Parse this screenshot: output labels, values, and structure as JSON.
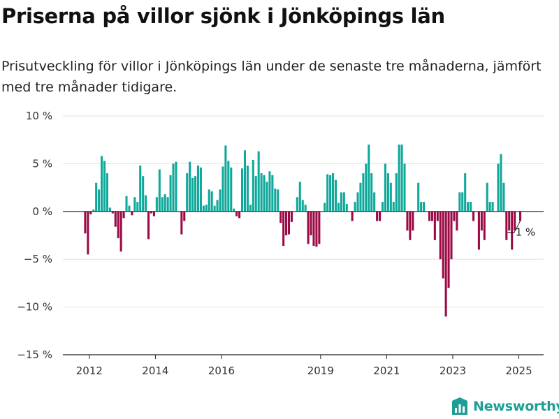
{
  "title": "Priserna på villor sjönk i Jönköpings län",
  "subtitle": "Prisutveckling för villor i Jönköpings län under de senaste tre månaderna, jämfört med tre månader tidigare.",
  "brand": "Newsworthy",
  "chart_data": {
    "type": "bar",
    "y_unit": "percent",
    "ylim": [
      -15,
      10
    ],
    "y_ticks": [
      10,
      5,
      0,
      -5,
      -10,
      -15
    ],
    "y_tick_labels": [
      "10 %",
      "5 %",
      "0 %",
      "−5 %",
      "−10 %",
      "−15 %"
    ],
    "x_tick_years": [
      2012,
      2014,
      2016,
      2019,
      2021,
      2023,
      2025
    ],
    "x_tick_labels": [
      "2012",
      "2014",
      "2016",
      "2019",
      "2021",
      "2023",
      "2025"
    ],
    "grid": true,
    "positive_color": "#0fa89a",
    "negative_color": "#9b0a45",
    "annotation": "−1 %",
    "period_start": "2011-11",
    "period_end": "2025-02",
    "values": [
      -2.3,
      -4.5,
      -0.3,
      0.2,
      3.0,
      2.3,
      5.8,
      5.3,
      4.0,
      0.4,
      -0.2,
      -1.6,
      -2.8,
      -4.2,
      -0.7,
      1.6,
      0.6,
      -0.4,
      1.5,
      1.0,
      4.8,
      3.7,
      1.7,
      -2.9,
      -0.2,
      -0.5,
      1.5,
      4.4,
      1.5,
      1.8,
      1.5,
      3.8,
      5.0,
      5.2,
      0.0,
      -2.4,
      -1.0,
      4.0,
      5.2,
      3.5,
      3.7,
      4.8,
      4.6,
      0.6,
      0.7,
      2.3,
      2.1,
      0.6,
      1.2,
      2.3,
      4.7,
      6.9,
      5.3,
      4.6,
      0.3,
      -0.5,
      -0.7,
      4.5,
      6.4,
      4.8,
      0.7,
      5.4,
      3.7,
      6.3,
      4.0,
      3.8,
      3.1,
      4.2,
      3.8,
      2.4,
      2.3,
      -1.2,
      -3.6,
      -2.5,
      -2.4,
      -1.1,
      0.0,
      1.5,
      3.1,
      1.2,
      0.7,
      -3.4,
      -2.5,
      -3.6,
      -3.7,
      -3.4,
      0.0,
      0.9,
      3.9,
      3.8,
      4.0,
      3.3,
      0.9,
      2.0,
      2.0,
      0.8,
      0.0,
      -1.0,
      1.0,
      2.0,
      3.0,
      4.0,
      5.0,
      7.0,
      4.0,
      2.0,
      -1.0,
      -1.0,
      1.0,
      5.0,
      4.0,
      3.0,
      1.0,
      4.0,
      7.0,
      7.0,
      5.0,
      -2.0,
      -3.0,
      -2.0,
      0.0,
      3.0,
      1.0,
      1.0,
      0.0,
      -1.0,
      -1.0,
      -3.0,
      -1.0,
      -5.0,
      -7.0,
      -11.0,
      -8.0,
      -5.0,
      -1.0,
      -2.0,
      2.0,
      2.0,
      4.0,
      1.0,
      1.0,
      -1.0,
      0.0,
      -4.0,
      -2.0,
      -3.0,
      3.0,
      1.0,
      1.0,
      0.0,
      5.0,
      6.0,
      3.0,
      -3.0,
      -2.0,
      -4.0,
      -2.0,
      0.0,
      -1.0
    ]
  }
}
